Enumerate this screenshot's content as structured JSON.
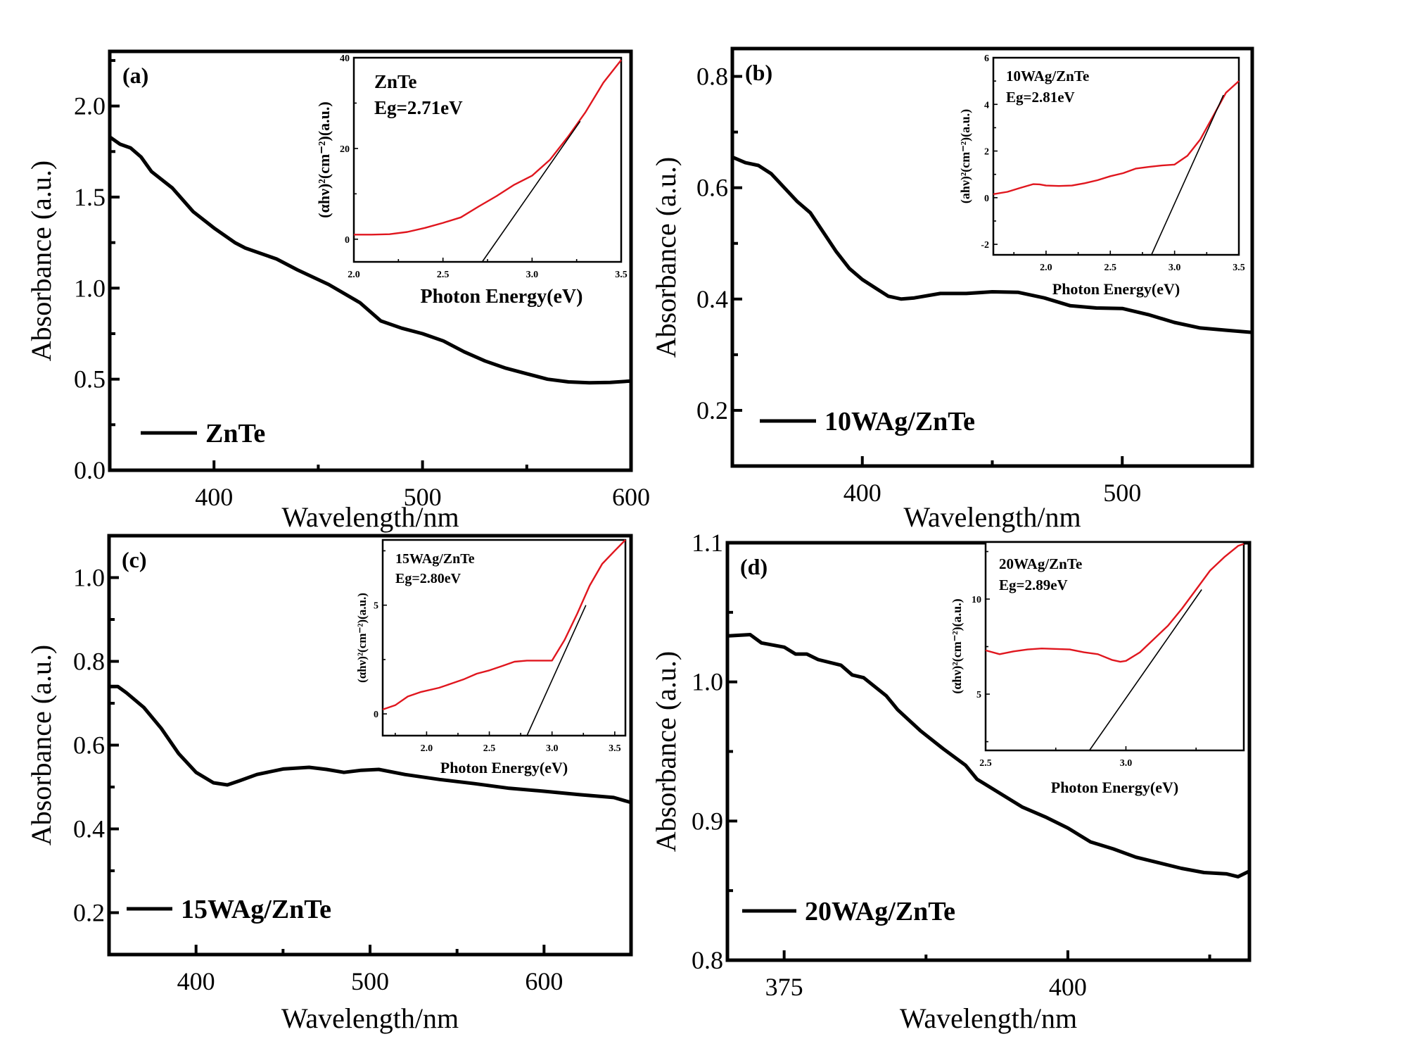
{
  "chart_data": [
    {
      "type": "line",
      "panel_label": "(a)",
      "xlabel": "Wavelength/nm",
      "ylabel": "Absorbance (a.u.)",
      "xlim": [
        350,
        600
      ],
      "ylim": [
        0,
        2.3
      ],
      "xticks": [
        400,
        500,
        600
      ],
      "yticks": [
        0.0,
        0.5,
        1.0,
        1.5,
        2.0
      ],
      "ytick_labels": [
        "0.0",
        "0.5",
        "1.0",
        "1.5",
        "2.0"
      ],
      "legend": "ZnTe",
      "legend_position": "bottom-left",
      "series": [
        {
          "name": "ZnTe",
          "color": "#000000",
          "x": [
            350,
            355,
            360,
            365,
            370,
            380,
            390,
            400,
            410,
            415,
            430,
            440,
            455,
            470,
            480,
            490,
            500,
            510,
            520,
            530,
            540,
            550,
            560,
            570,
            580,
            590,
            600
          ],
          "y": [
            1.83,
            1.79,
            1.77,
            1.72,
            1.64,
            1.55,
            1.42,
            1.33,
            1.25,
            1.22,
            1.16,
            1.1,
            1.02,
            0.92,
            0.82,
            0.78,
            0.75,
            0.71,
            0.65,
            0.6,
            0.56,
            0.53,
            0.5,
            0.485,
            0.48,
            0.482,
            0.49
          ]
        }
      ],
      "inset": {
        "type": "line",
        "xlabel": "Photon Energy(eV)",
        "ylabel": "(αhν)²(cm⁻²)(a.u.)",
        "xlim": [
          2.0,
          3.5
        ],
        "ylim": [
          -5,
          40
        ],
        "xticks": [
          2.0,
          2.5,
          3.0,
          3.5
        ],
        "xtick_labels": [
          "2.0",
          "2.5",
          "3.0",
          "3.5"
        ],
        "yticks": [
          0,
          20,
          40
        ],
        "ytick_labels": [
          "0",
          "20",
          "40"
        ],
        "annotation_name": "ZnTe",
        "annotation_eg": "Eg=2.71eV",
        "eg_value": 2.71,
        "curve_color": "#e0161e",
        "x": [
          2.0,
          2.1,
          2.2,
          2.3,
          2.4,
          2.5,
          2.6,
          2.7,
          2.8,
          2.9,
          3.0,
          3.1,
          3.2,
          3.3,
          3.4,
          3.5
        ],
        "y": [
          1.0,
          1.0,
          1.1,
          1.6,
          2.5,
          3.6,
          4.8,
          7.2,
          9.5,
          12.0,
          14.0,
          17.5,
          22.5,
          28.0,
          34.5,
          39.5
        ],
        "fit_line": {
          "x": [
            2.72,
            3.27
          ],
          "y": [
            -5,
            26
          ]
        }
      }
    },
    {
      "type": "line",
      "panel_label": "(b)",
      "xlabel": "Wavelength/nm",
      "ylabel": "Absorbance (a.u.)",
      "xlim": [
        350,
        550
      ],
      "ylim": [
        0.1,
        0.85
      ],
      "xticks": [
        400,
        500
      ],
      "yticks": [
        0.2,
        0.4,
        0.6,
        0.8
      ],
      "ytick_labels": [
        "0.2",
        "0.4",
        "0.6",
        "0.8"
      ],
      "legend": "10WAg/ZnTe",
      "legend_position": "bottom-left",
      "series": [
        {
          "name": "10WAg/ZnTe",
          "color": "#000000",
          "x": [
            350,
            355,
            360,
            365,
            370,
            375,
            380,
            385,
            390,
            395,
            400,
            405,
            410,
            415,
            420,
            430,
            440,
            450,
            460,
            470,
            480,
            490,
            500,
            510,
            520,
            530,
            540,
            550
          ],
          "y": [
            0.655,
            0.645,
            0.64,
            0.625,
            0.6,
            0.575,
            0.555,
            0.52,
            0.485,
            0.455,
            0.435,
            0.42,
            0.405,
            0.4,
            0.402,
            0.41,
            0.41,
            0.413,
            0.412,
            0.402,
            0.388,
            0.384,
            0.383,
            0.372,
            0.358,
            0.348,
            0.344,
            0.34
          ]
        }
      ],
      "inset": {
        "type": "line",
        "xlabel": "Photon Energy(eV)",
        "ylabel": "(ahν)²(cm⁻²)(a.u.)",
        "xlim": [
          1.59,
          3.5
        ],
        "ylim": [
          -2.45,
          6
        ],
        "xticks": [
          2.0,
          2.5,
          3.0,
          3.5
        ],
        "xtick_labels": [
          "2.0",
          "2.5",
          "3.0",
          "3.5"
        ],
        "yticks": [
          -2,
          0,
          2,
          4,
          6
        ],
        "ytick_labels": [
          "-2",
          "0",
          "2",
          "4",
          "6"
        ],
        "annotation_name": "10WAg/ZnTe",
        "annotation_eg": "Eg=2.81eV",
        "eg_value": 2.81,
        "curve_color": "#e0161e",
        "x": [
          1.59,
          1.7,
          1.8,
          1.9,
          1.95,
          2.0,
          2.1,
          2.2,
          2.3,
          2.4,
          2.5,
          2.6,
          2.7,
          2.8,
          2.9,
          3.0,
          3.1,
          3.2,
          3.3,
          3.4,
          3.5
        ],
        "y": [
          0.15,
          0.25,
          0.42,
          0.58,
          0.57,
          0.52,
          0.5,
          0.52,
          0.62,
          0.75,
          0.92,
          1.05,
          1.25,
          1.32,
          1.38,
          1.42,
          1.8,
          2.5,
          3.5,
          4.5,
          5.0
        ],
        "fit_line": {
          "x": [
            2.82,
            3.38
          ],
          "y": [
            -2.45,
            4.4
          ]
        }
      }
    },
    {
      "type": "line",
      "panel_label": "(c)",
      "xlabel": "Wavelength/nm",
      "ylabel": "Absorbance (a.u.)",
      "xlim": [
        350,
        650
      ],
      "ylim": [
        0.1,
        1.1
      ],
      "xticks": [
        400,
        500,
        600
      ],
      "yticks": [
        0.2,
        0.4,
        0.6,
        0.8,
        1.0
      ],
      "ytick_labels": [
        "0.2",
        "0.4",
        "0.6",
        "0.8",
        "1.0"
      ],
      "legend": "15WAg/ZnTe",
      "legend_position": "bottom-left",
      "series": [
        {
          "name": "15WAg/ZnTe",
          "color": "#000000",
          "x": [
            350,
            355,
            360,
            370,
            380,
            390,
            400,
            410,
            418,
            425,
            435,
            450,
            465,
            475,
            485,
            495,
            505,
            520,
            540,
            560,
            580,
            600,
            620,
            640,
            650
          ],
          "y": [
            0.74,
            0.74,
            0.725,
            0.69,
            0.64,
            0.58,
            0.535,
            0.51,
            0.505,
            0.515,
            0.53,
            0.543,
            0.547,
            0.542,
            0.535,
            0.54,
            0.542,
            0.53,
            0.518,
            0.508,
            0.497,
            0.49,
            0.482,
            0.475,
            0.463
          ]
        }
      ],
      "inset": {
        "type": "line",
        "xlabel": "Photon Energy(eV)",
        "ylabel": "(αhν)²(cm⁻²)(a.u.)",
        "xlim": [
          1.65,
          3.585
        ],
        "ylim": [
          -1,
          8
        ],
        "xticks": [
          2.0,
          2.5,
          3.0,
          3.5
        ],
        "xtick_labels": [
          "2.0",
          "2.5",
          "3.0",
          "3.5"
        ],
        "yticks": [
          0,
          5
        ],
        "ytick_labels": [
          "0",
          "5"
        ],
        "annotation_name": "15WAg/ZnTe",
        "annotation_eg": "Eg=2.80eV",
        "eg_value": 2.8,
        "curve_color": "#e0161e",
        "x": [
          1.65,
          1.75,
          1.85,
          1.95,
          2.1,
          2.2,
          2.3,
          2.4,
          2.5,
          2.6,
          2.7,
          2.8,
          2.9,
          3.0,
          3.1,
          3.2,
          3.3,
          3.4,
          3.5,
          3.585
        ],
        "y": [
          0.2,
          0.4,
          0.8,
          1.0,
          1.2,
          1.4,
          1.6,
          1.85,
          2.0,
          2.2,
          2.4,
          2.45,
          2.45,
          2.45,
          3.4,
          4.6,
          5.9,
          6.9,
          7.5,
          8.0
        ],
        "fit_line": {
          "x": [
            2.8,
            3.27
          ],
          "y": [
            -1,
            5.0
          ]
        }
      }
    },
    {
      "type": "line",
      "panel_label": "(d)",
      "xlabel": "Wavelength/nm",
      "ylabel": "Absorbance (a.u.)",
      "xlim": [
        370,
        416
      ],
      "ylim": [
        0.8,
        1.1
      ],
      "xticks": [
        375,
        400
      ],
      "yticks": [
        0.8,
        0.9,
        1.0,
        1.1
      ],
      "ytick_labels": [
        "0.8",
        "0.9",
        "1.0",
        "1.1"
      ],
      "legend": "20WAg/ZnTe",
      "legend_position": "bottom-left",
      "series": [
        {
          "name": "20WAg/ZnTe",
          "color": "#000000",
          "x": [
            370,
            372,
            373,
            375,
            376,
            377,
            378,
            380,
            381,
            382,
            384,
            385,
            387,
            389,
            390,
            391,
            392,
            394,
            396,
            398,
            400,
            401,
            402,
            404,
            406,
            408,
            410,
            412,
            414,
            415,
            416
          ],
          "y": [
            1.033,
            1.034,
            1.028,
            1.025,
            1.02,
            1.02,
            1.016,
            1.012,
            1.005,
            1.003,
            0.99,
            0.98,
            0.965,
            0.952,
            0.946,
            0.94,
            0.93,
            0.92,
            0.91,
            0.903,
            0.895,
            0.89,
            0.885,
            0.88,
            0.874,
            0.87,
            0.866,
            0.863,
            0.862,
            0.86,
            0.864
          ]
        }
      ],
      "inset": {
        "type": "line",
        "xlabel": "Photon Energy(eV)",
        "ylabel": "(αhν)²(cm⁻²)(a.u.)",
        "xlim": [
          2.5,
          3.42
        ],
        "ylim": [
          2.04,
          13.0
        ],
        "xticks": [
          2.5,
          3.0
        ],
        "xtick_labels": [
          "2.5",
          "3.0"
        ],
        "yticks": [
          5,
          10
        ],
        "ytick_labels": [
          "5",
          "10"
        ],
        "annotation_name": "20WAg/ZnTe",
        "annotation_eg": "Eg=2.89eV",
        "eg_value": 2.89,
        "curve_color": "#e0161e",
        "x": [
          2.5,
          2.55,
          2.6,
          2.65,
          2.7,
          2.8,
          2.85,
          2.9,
          2.95,
          2.98,
          3.0,
          3.05,
          3.1,
          3.15,
          3.2,
          3.25,
          3.3,
          3.35,
          3.4,
          3.42
        ],
        "y": [
          7.3,
          7.1,
          7.25,
          7.35,
          7.4,
          7.35,
          7.2,
          7.1,
          6.8,
          6.7,
          6.75,
          7.2,
          7.9,
          8.6,
          9.5,
          10.5,
          11.5,
          12.2,
          12.8,
          12.9
        ],
        "fit_line": {
          "x": [
            2.87,
            3.27
          ],
          "y": [
            2.04,
            10.5
          ]
        }
      }
    }
  ]
}
